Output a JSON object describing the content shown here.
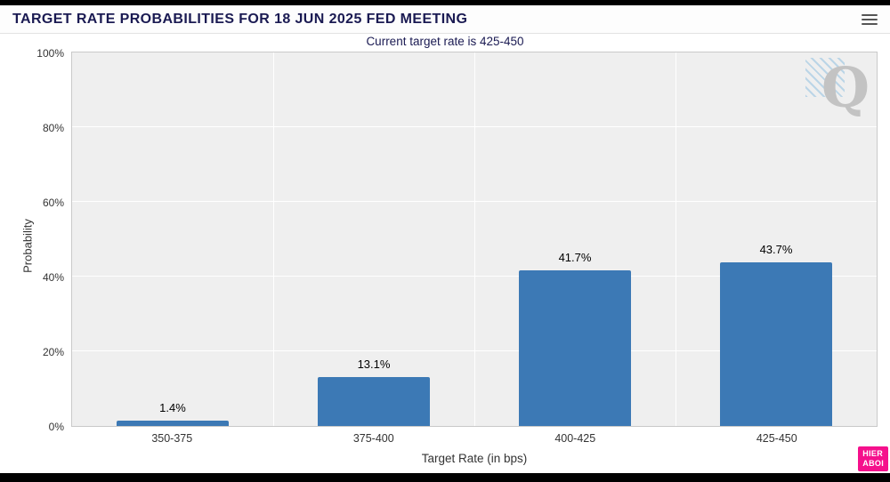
{
  "header": {
    "title": "TARGET RATE PROBABILITIES FOR 18 JUN 2025 FED MEETING"
  },
  "chart_data": {
    "type": "bar",
    "title": "TARGET RATE PROBABILITIES FOR 18 JUN 2025 FED MEETING",
    "subtitle": "Current target rate is 425-450",
    "categories": [
      "350-375",
      "375-400",
      "400-425",
      "425-450"
    ],
    "values": [
      1.4,
      13.1,
      41.7,
      43.7
    ],
    "value_labels": [
      "1.4%",
      "13.1%",
      "41.7%",
      "43.7%"
    ],
    "xlabel": "Target Rate (in bps)",
    "ylabel": "Probability",
    "ylim": [
      0,
      100
    ],
    "ytick_values": [
      0,
      20,
      40,
      60,
      80,
      100
    ],
    "ytick_labels": [
      "0%",
      "20%",
      "40%",
      "60%",
      "80%",
      "100%"
    ],
    "bar_color": "#3c79b5",
    "grid": true,
    "legend": false
  },
  "watermark": {
    "letter": "Q"
  },
  "badge": {
    "line1": "HIER",
    "line2": "ABOI",
    "color": "#f5108c"
  }
}
